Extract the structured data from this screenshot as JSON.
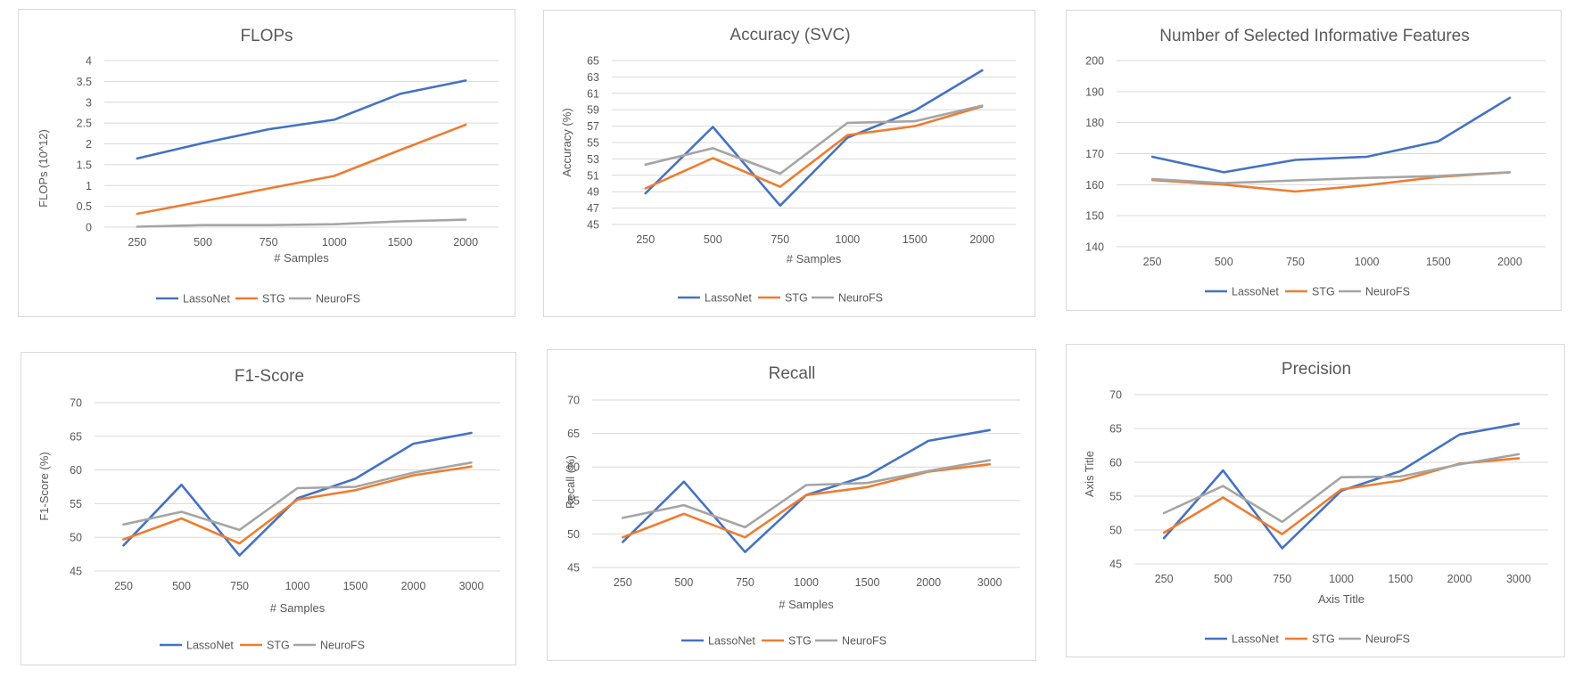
{
  "colors": {
    "LassoNet": "#4472C4",
    "STG": "#ED7D31",
    "NeuroFS": "#A5A5A5"
  },
  "chart_data": [
    {
      "type": "line",
      "title": "FLOPs",
      "xlabel": "# Samples",
      "ylabel": "FLOPs (10^12)",
      "categories": [
        "250",
        "500",
        "750",
        "1000",
        "1500",
        "2000"
      ],
      "yticks": [
        "0",
        "0.5",
        "1",
        "1.5",
        "2",
        "2.5",
        "3",
        "3.5",
        "4"
      ],
      "ylim": [
        0,
        4
      ],
      "grid": true,
      "legend_position": "bottom",
      "series": [
        {
          "name": "LassoNet",
          "values": [
            1.65,
            2.02,
            2.35,
            2.58,
            3.2,
            3.52
          ]
        },
        {
          "name": "STG",
          "values": [
            0.32,
            0.62,
            0.93,
            1.23,
            1.85,
            2.46
          ]
        },
        {
          "name": "NeuroFS",
          "values": [
            0.01,
            0.05,
            0.05,
            0.07,
            0.14,
            0.18
          ]
        }
      ]
    },
    {
      "type": "line",
      "title": "Accuracy (SVC)",
      "xlabel": "# Samples",
      "ylabel": "Accuracy (%)",
      "categories": [
        "250",
        "500",
        "750",
        "1000",
        "1500",
        "2000"
      ],
      "yticks": [
        "45",
        "47",
        "49",
        "51",
        "53",
        "55",
        "57",
        "59",
        "61",
        "63",
        "65"
      ],
      "ylim": [
        45,
        65
      ],
      "grid": true,
      "legend_position": "bottom",
      "series": [
        {
          "name": "LassoNet",
          "values": [
            48.8,
            56.9,
            47.3,
            55.6,
            58.9,
            63.8
          ]
        },
        {
          "name": "STG",
          "values": [
            49.4,
            53.1,
            49.6,
            55.9,
            57.0,
            59.4
          ]
        },
        {
          "name": "NeuroFS",
          "values": [
            52.3,
            54.3,
            51.2,
            57.4,
            57.6,
            59.5
          ]
        }
      ]
    },
    {
      "type": "line",
      "title": "Number of Selected Informative Features",
      "xlabel": "",
      "ylabel": "",
      "categories": [
        "250",
        "500",
        "750",
        "1000",
        "1500",
        "2000"
      ],
      "yticks": [
        "140",
        "150",
        "160",
        "170",
        "180",
        "190",
        "200"
      ],
      "ylim": [
        140,
        200
      ],
      "grid": true,
      "legend_position": "bottom",
      "series": [
        {
          "name": "LassoNet",
          "values": [
            169,
            164,
            168,
            169,
            174,
            188
          ]
        },
        {
          "name": "STG",
          "values": [
            161.5,
            160,
            157.8,
            159.8,
            162.5,
            164
          ]
        },
        {
          "name": "NeuroFS",
          "values": [
            161.8,
            160.5,
            161.4,
            162.2,
            162.8,
            164
          ]
        }
      ]
    },
    {
      "type": "line",
      "title": "F1-Score",
      "xlabel": "# Samples",
      "ylabel": "F1-Score (%)",
      "categories": [
        "250",
        "500",
        "750",
        "1000",
        "1500",
        "2000",
        "3000"
      ],
      "yticks": [
        "45",
        "50",
        "55",
        "60",
        "65",
        "70"
      ],
      "ylim": [
        45,
        70
      ],
      "grid": true,
      "legend_position": "bottom",
      "series": [
        {
          "name": "LassoNet",
          "values": [
            48.8,
            57.8,
            47.3,
            55.8,
            58.7,
            63.9,
            65.5
          ]
        },
        {
          "name": "STG",
          "values": [
            49.7,
            52.8,
            49.1,
            55.6,
            57.0,
            59.2,
            60.5
          ]
        },
        {
          "name": "NeuroFS",
          "values": [
            51.9,
            53.8,
            51.1,
            57.3,
            57.5,
            59.6,
            61.1
          ]
        }
      ]
    },
    {
      "type": "line",
      "title": "Recall",
      "xlabel": "# Samples",
      "ylabel": "Recall (%)",
      "categories": [
        "250",
        "500",
        "750",
        "1000",
        "1500",
        "2000",
        "3000"
      ],
      "yticks": [
        "45",
        "50",
        "55",
        "60",
        "65",
        "70"
      ],
      "ylim": [
        45,
        70
      ],
      "grid": true,
      "legend_position": "bottom",
      "series": [
        {
          "name": "LassoNet",
          "values": [
            48.8,
            57.8,
            47.3,
            55.8,
            58.7,
            63.9,
            65.5
          ]
        },
        {
          "name": "STG",
          "values": [
            49.5,
            53.0,
            49.5,
            55.8,
            57.0,
            59.3,
            60.4
          ]
        },
        {
          "name": "NeuroFS",
          "values": [
            52.4,
            54.3,
            51.0,
            57.3,
            57.6,
            59.4,
            61.0
          ]
        }
      ]
    },
    {
      "type": "line",
      "title": "Precision",
      "xlabel": "Axis Title",
      "ylabel": "Axis Title",
      "categories": [
        "250",
        "500",
        "750",
        "1000",
        "1500",
        "2000",
        "3000"
      ],
      "yticks": [
        "45",
        "50",
        "55",
        "60",
        "65",
        "70"
      ],
      "ylim": [
        45,
        70
      ],
      "grid": true,
      "legend_position": "bottom",
      "series": [
        {
          "name": "LassoNet",
          "values": [
            48.8,
            58.8,
            47.3,
            55.8,
            58.7,
            64.1,
            65.7
          ]
        },
        {
          "name": "STG",
          "values": [
            49.6,
            54.8,
            49.4,
            56.0,
            57.3,
            59.8,
            60.6
          ]
        },
        {
          "name": "NeuroFS",
          "values": [
            52.5,
            56.5,
            51.2,
            57.8,
            57.9,
            59.7,
            61.2
          ]
        }
      ]
    }
  ]
}
